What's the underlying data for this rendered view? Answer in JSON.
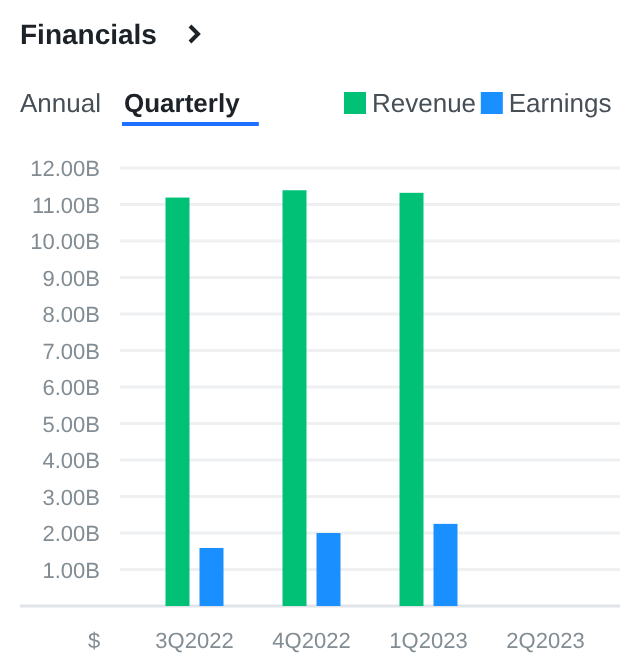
{
  "chart_data": {
    "type": "bar",
    "title": "Financials",
    "annotations": [
      "Annual",
      "Quarterly"
    ],
    "ylabel": "$",
    "categories": [
      "3Q2022",
      "4Q2022",
      "1Q2023",
      "2Q2023"
    ],
    "series": [
      {
        "name": "Revenue",
        "color": "#00c176",
        "values": [
          11.19,
          11.39,
          11.32,
          null
        ]
      },
      {
        "name": "Earnings",
        "color": "#1a8fff",
        "values": [
          1.59,
          2.0,
          2.25,
          null
        ]
      }
    ],
    "ylim": [
      0,
      12
    ],
    "yticks": [
      {
        "value": 1,
        "label": "1.00B"
      },
      {
        "value": 2,
        "label": "2.00B"
      },
      {
        "value": 3,
        "label": "3.00B"
      },
      {
        "value": 4,
        "label": "4.00B"
      },
      {
        "value": 5,
        "label": "5.00B"
      },
      {
        "value": 6,
        "label": "6.00B"
      },
      {
        "value": 7,
        "label": "7.00B"
      },
      {
        "value": 8,
        "label": "8.00B"
      },
      {
        "value": 9,
        "label": "9.00B"
      },
      {
        "value": 10,
        "label": "10.00B"
      },
      {
        "value": 11,
        "label": "11.00B"
      },
      {
        "value": 12,
        "label": "12.00B"
      }
    ],
    "grid": "y",
    "legend": "top right"
  }
}
